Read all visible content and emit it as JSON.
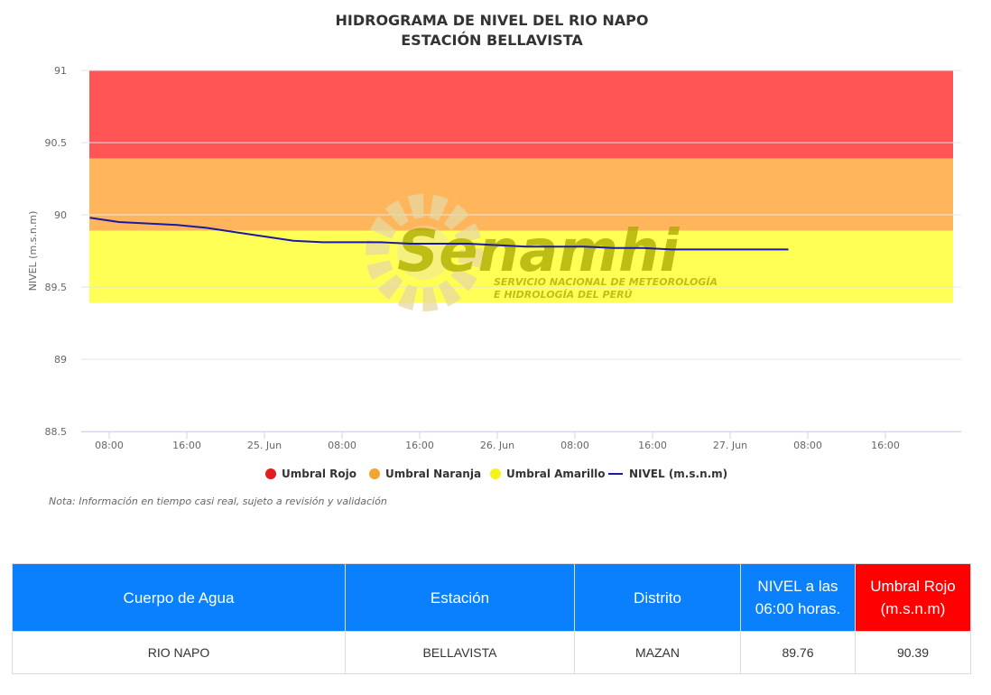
{
  "chart_data": {
    "type": "line",
    "title": "HIDROGRAMA DE NIVEL DEL RIO NAPO",
    "subtitle": "ESTACIÓN BELLAVISTA",
    "ylabel": "NIVEL (m.s.n.m)",
    "ylim": [
      88.5,
      91
    ],
    "yticks": [
      "91",
      "90.5",
      "90",
      "89.5",
      "89",
      "88.5"
    ],
    "xticks": [
      "08:00",
      "16:00",
      "25. Jun",
      "08:00",
      "16:00",
      "26. Jun",
      "08:00",
      "16:00",
      "27. Jun",
      "08:00",
      "16:00"
    ],
    "grid": true,
    "legend_position": "bottom",
    "bands": [
      {
        "name": "Umbral Rojo",
        "from": 90.39,
        "to": 91.0,
        "color": "#ff5555"
      },
      {
        "name": "Umbral Naranja",
        "from": 89.89,
        "to": 90.39,
        "color": "#ffb55c"
      },
      {
        "name": "Umbral Amarillo",
        "from": 89.39,
        "to": 89.89,
        "color": "#ffff55"
      }
    ],
    "series": [
      {
        "name": "NIVEL (m.s.n.m)",
        "color": "#1a1aa6",
        "x": [
          "24 Jun 06:00",
          "24 Jun 09:00",
          "24 Jun 12:00",
          "24 Jun 15:00",
          "24 Jun 18:00",
          "24 Jun 21:00",
          "25 Jun 00:00",
          "25 Jun 03:00",
          "25 Jun 06:00",
          "25 Jun 09:00",
          "25 Jun 12:00",
          "25 Jun 15:00",
          "25 Jun 18:00",
          "25 Jun 21:00",
          "26 Jun 00:00",
          "26 Jun 03:00",
          "26 Jun 06:00",
          "26 Jun 09:00",
          "26 Jun 12:00",
          "26 Jun 15:00",
          "26 Jun 18:00",
          "26 Jun 21:00",
          "27 Jun 00:00",
          "27 Jun 03:00",
          "27 Jun 06:00"
        ],
        "values": [
          89.98,
          89.95,
          89.94,
          89.93,
          89.91,
          89.88,
          89.85,
          89.82,
          89.81,
          89.81,
          89.81,
          89.8,
          89.8,
          89.8,
          89.79,
          89.78,
          89.78,
          89.78,
          89.77,
          89.77,
          89.76,
          89.76,
          89.76,
          89.76,
          89.76
        ]
      }
    ],
    "legend": [
      {
        "label": "Umbral Rojo",
        "color": "#e31b23",
        "kind": "dot"
      },
      {
        "label": "Umbral Naranja",
        "color": "#f2a530",
        "kind": "dot"
      },
      {
        "label": "Umbral Amarillo",
        "color": "#f7f316",
        "kind": "dot"
      },
      {
        "label": "NIVEL (m.s.n.m)",
        "color": "#1a1aa6",
        "kind": "line"
      }
    ]
  },
  "note": "Nota: Información en tiempo casi real, sujeto a revisión y validación",
  "watermark": {
    "name": "Senamhi",
    "line1": "SERVICIO NACIONAL DE METEOROLOGÍA",
    "line2": "E HIDROLOGÍA DEL PERÚ"
  },
  "table": {
    "headers": [
      "Cuerpo de Agua",
      "Estación",
      "Distrito",
      "NIVEL a las 06:00 horas.",
      "Umbral Rojo (m.s.n.m)"
    ],
    "header_colors": [
      "#0b80fc",
      "#0b80fc",
      "#0b80fc",
      "#0b80fc",
      "#fe0000"
    ],
    "rows": [
      [
        "RIO NAPO",
        "BELLAVISTA",
        "MAZAN",
        "89.76",
        "90.39"
      ]
    ]
  }
}
